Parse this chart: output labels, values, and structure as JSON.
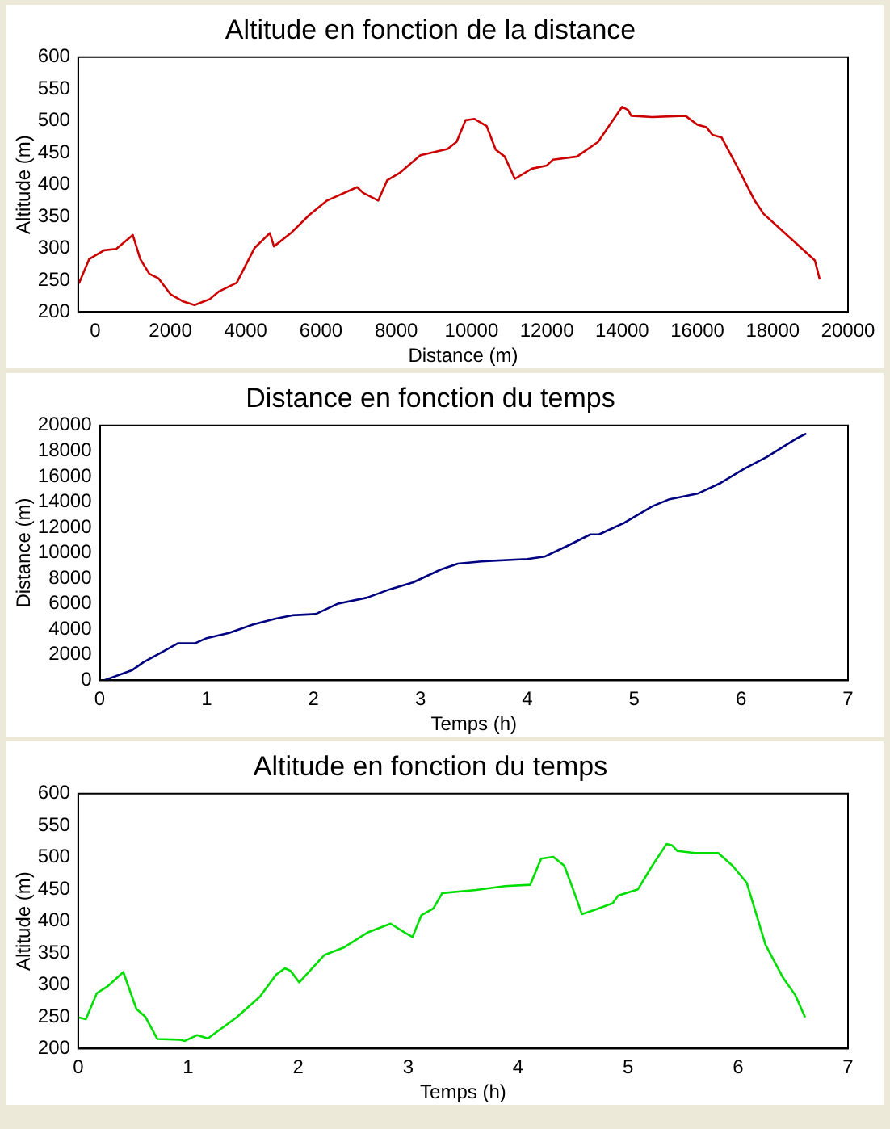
{
  "chart_data": [
    {
      "type": "line",
      "title": "Altitude en fonction de la distance",
      "xlabel": "Distance (m)",
      "ylabel": "Altitude (m)",
      "marker": "none",
      "x": [
        -430,
        -160,
        240,
        560,
        1000,
        1200,
        1440,
        1680,
        2000,
        2320,
        2640,
        3040,
        3280,
        3760,
        4240,
        4640,
        4750,
        5200,
        5680,
        6160,
        6960,
        7120,
        7520,
        7760,
        8080,
        8640,
        9360,
        9600,
        9840,
        10080,
        10400,
        10640,
        10880,
        11150,
        11600,
        12000,
        12160,
        12800,
        13360,
        14000,
        14160,
        14240,
        14800,
        15680,
        16000,
        16240,
        16400,
        16640,
        17040,
        17520,
        17760,
        18320,
        19120,
        19250
      ],
      "series": [
        {
          "color": "#cc0000",
          "values": [
            245,
            283,
            297,
            299,
            321,
            283,
            260,
            253,
            228,
            217,
            211,
            220,
            232,
            246,
            301,
            324,
            303,
            324,
            352,
            375,
            396,
            387,
            375,
            407,
            418,
            446,
            456,
            467,
            501,
            503,
            492,
            455,
            444,
            409,
            425,
            430,
            439,
            444,
            467,
            522,
            517,
            508,
            506,
            508,
            494,
            490,
            478,
            474,
            430,
            375,
            354,
            324,
            281,
            251
          ]
        }
      ],
      "xlim": [
        -450,
        20000
      ],
      "xticks": [
        0,
        2000,
        4000,
        6000,
        8000,
        10000,
        12000,
        14000,
        16000,
        18000,
        20000
      ],
      "ylim": [
        200,
        600
      ],
      "yticks": [
        200,
        250,
        300,
        350,
        400,
        450,
        500,
        550,
        600
      ]
    },
    {
      "type": "line",
      "title": "Distance en fonction du temps",
      "xlabel": "Temps (h)",
      "ylabel": "Distance (m)",
      "marker": "none",
      "x": [
        0.04,
        0.3,
        0.41,
        0.57,
        0.73,
        0.89,
        1.0,
        1.21,
        1.43,
        1.64,
        1.8,
        2.02,
        2.23,
        2.5,
        2.71,
        2.93,
        3.19,
        3.35,
        3.57,
        4.0,
        4.16,
        4.37,
        4.59,
        4.67,
        4.91,
        5.17,
        5.33,
        5.6,
        5.81,
        6.03,
        6.24,
        6.51,
        6.61
      ],
      "series": [
        {
          "color": "#000080",
          "values": [
            0,
            780,
            1430,
            2160,
            2900,
            2900,
            3310,
            3720,
            4370,
            4830,
            5100,
            5200,
            6020,
            6480,
            7130,
            7680,
            8690,
            9150,
            9330,
            9520,
            9700,
            10530,
            11450,
            11450,
            12370,
            13660,
            14210,
            14670,
            15490,
            16600,
            17520,
            18940,
            19360
          ]
        }
      ],
      "xlim": [
        0,
        7
      ],
      "xticks": [
        0,
        1,
        2,
        3,
        4,
        5,
        6,
        7
      ],
      "ylim": [
        0,
        20000
      ],
      "yticks": [
        0,
        2000,
        4000,
        6000,
        8000,
        10000,
        12000,
        14000,
        16000,
        18000,
        20000
      ]
    },
    {
      "type": "line",
      "title": "Altitude en fonction du temps",
      "xlabel": "Temps (h)",
      "ylabel": "Altitude (m)",
      "marker": "none",
      "x": [
        0,
        0.07,
        0.17,
        0.27,
        0.41,
        0.53,
        0.61,
        0.72,
        0.92,
        0.97,
        1.08,
        1.18,
        1.44,
        1.65,
        1.8,
        1.88,
        1.93,
        2.01,
        2.24,
        2.42,
        2.63,
        2.84,
        2.97,
        3.04,
        3.12,
        3.23,
        3.31,
        3.62,
        3.88,
        4.11,
        4.21,
        4.32,
        4.42,
        4.5,
        4.58,
        4.7,
        4.86,
        4.91,
        5.09,
        5.22,
        5.35,
        5.4,
        5.45,
        5.61,
        5.82,
        5.95,
        6.08,
        6.25,
        6.41,
        6.52,
        6.61
      ],
      "series": [
        {
          "color": "#00dd00",
          "values": [
            249,
            246,
            287,
            298,
            320,
            262,
            250,
            215,
            214,
            212,
            221,
            216,
            249,
            281,
            316,
            326,
            322,
            304,
            347,
            359,
            382,
            396,
            382,
            375,
            409,
            420,
            444,
            449,
            455,
            457,
            498,
            501,
            487,
            450,
            411,
            418,
            428,
            440,
            450,
            487,
            521,
            519,
            510,
            507,
            507,
            487,
            460,
            363,
            311,
            284,
            249
          ]
        }
      ],
      "xlim": [
        0,
        7
      ],
      "xticks": [
        0,
        1,
        2,
        3,
        4,
        5,
        6,
        7
      ],
      "ylim": [
        200,
        600
      ],
      "yticks": [
        200,
        250,
        300,
        350,
        400,
        450,
        500,
        550,
        600
      ]
    }
  ]
}
